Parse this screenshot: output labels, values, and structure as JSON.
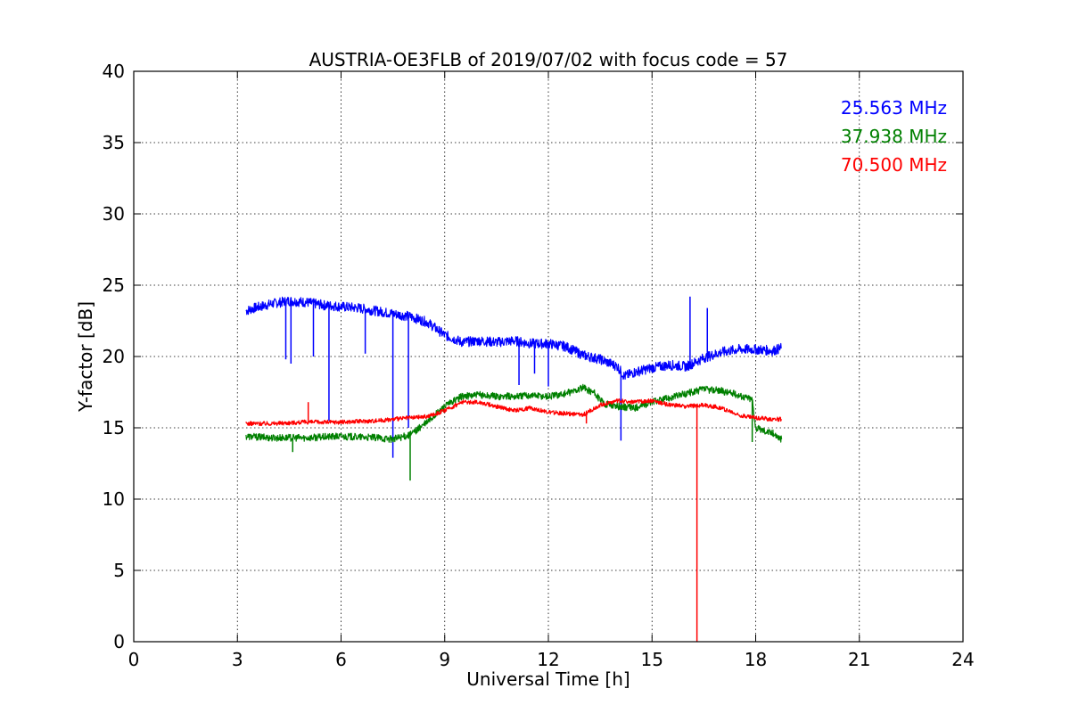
{
  "chart_data": {
    "type": "line",
    "title": "AUSTRIA-OE3FLB of 2019/07/02 with focus code = 57",
    "xlabel": "Universal Time [h]",
    "ylabel": "Y-factor [dB]",
    "xlim": [
      0,
      24
    ],
    "ylim": [
      0,
      40
    ],
    "xticks": [
      0,
      3,
      6,
      9,
      12,
      15,
      18,
      21,
      24
    ],
    "yticks": [
      0,
      5,
      10,
      15,
      20,
      25,
      30,
      35,
      40
    ],
    "grid": true,
    "legend_position": "top-right",
    "series": [
      {
        "name": "25.563 MHz",
        "color": "#0000ff",
        "x": [
          3.25,
          3.5,
          4.0,
          4.5,
          5.0,
          5.5,
          6.0,
          6.5,
          7.0,
          7.5,
          8.0,
          8.5,
          9.0,
          9.5,
          10.0,
          10.5,
          11.0,
          11.5,
          12.0,
          12.5,
          13.0,
          13.5,
          14.0,
          14.2,
          14.5,
          15.0,
          15.5,
          16.0,
          16.5,
          17.0,
          17.5,
          18.0,
          18.5,
          18.75
        ],
        "y": [
          23.2,
          23.4,
          23.7,
          23.9,
          23.8,
          23.6,
          23.5,
          23.4,
          23.2,
          23.0,
          22.8,
          22.4,
          21.5,
          21.0,
          21.1,
          21.0,
          21.1,
          20.9,
          20.9,
          20.7,
          20.1,
          19.8,
          19.3,
          18.6,
          18.9,
          19.2,
          19.4,
          19.3,
          19.9,
          20.3,
          20.5,
          20.5,
          20.4,
          20.6
        ]
      },
      {
        "name": "37.938 MHz",
        "color": "#008000",
        "x": [
          3.25,
          4.0,
          5.0,
          6.0,
          7.0,
          7.5,
          8.0,
          8.5,
          9.0,
          9.5,
          10.0,
          10.5,
          11.0,
          11.5,
          12.0,
          12.5,
          13.0,
          13.3,
          13.6,
          14.0,
          14.5,
          15.0,
          15.5,
          16.0,
          16.5,
          17.0,
          17.5,
          17.9,
          18.0,
          18.5,
          18.75
        ],
        "y": [
          14.4,
          14.3,
          14.3,
          14.4,
          14.3,
          14.2,
          14.5,
          15.4,
          16.5,
          17.2,
          17.3,
          17.2,
          17.2,
          17.3,
          17.2,
          17.4,
          17.8,
          17.5,
          16.7,
          16.5,
          16.4,
          16.8,
          17.1,
          17.4,
          17.7,
          17.6,
          17.3,
          17.0,
          15.0,
          14.6,
          14.2
        ]
      },
      {
        "name": "70.500 MHz",
        "color": "#ff0000",
        "x": [
          3.25,
          4.0,
          5.0,
          6.0,
          7.0,
          8.0,
          8.5,
          9.0,
          9.5,
          10.0,
          10.5,
          11.0,
          11.5,
          12.0,
          12.5,
          13.0,
          13.5,
          14.0,
          14.5,
          15.0,
          15.5,
          16.0,
          16.5,
          17.0,
          17.5,
          18.0,
          18.5,
          18.75
        ],
        "y": [
          15.3,
          15.3,
          15.4,
          15.4,
          15.5,
          15.7,
          15.8,
          16.2,
          16.8,
          16.8,
          16.5,
          16.2,
          16.4,
          16.1,
          16.0,
          15.9,
          16.6,
          16.9,
          16.8,
          16.9,
          16.6,
          16.5,
          16.6,
          16.4,
          15.9,
          15.7,
          15.6,
          15.6
        ]
      }
    ],
    "spikes": [
      {
        "series": 0,
        "x": 4.4,
        "y": 19.8
      },
      {
        "series": 0,
        "x": 4.55,
        "y": 19.5
      },
      {
        "series": 0,
        "x": 5.2,
        "y": 20.0
      },
      {
        "series": 0,
        "x": 5.65,
        "y": 15.5
      },
      {
        "series": 0,
        "x": 6.7,
        "y": 20.2
      },
      {
        "series": 0,
        "x": 7.5,
        "y": 12.9
      },
      {
        "series": 0,
        "x": 7.95,
        "y": 15.0
      },
      {
        "series": 0,
        "x": 11.15,
        "y": 18.0
      },
      {
        "series": 0,
        "x": 11.6,
        "y": 18.8
      },
      {
        "series": 0,
        "x": 12.0,
        "y": 17.9
      },
      {
        "series": 0,
        "x": 14.1,
        "y": 14.1
      },
      {
        "series": 0,
        "x": 16.1,
        "y": 24.2
      },
      {
        "series": 0,
        "x": 16.6,
        "y": 23.4
      },
      {
        "series": 1,
        "x": 4.6,
        "y": 13.3
      },
      {
        "series": 1,
        "x": 8.0,
        "y": 11.3
      },
      {
        "series": 1,
        "x": 17.9,
        "y": 14.0
      },
      {
        "series": 2,
        "x": 5.05,
        "y": 16.8
      },
      {
        "series": 2,
        "x": 16.3,
        "y": 0.0
      },
      {
        "series": 2,
        "x": 8.55,
        "y": 15.9
      },
      {
        "series": 2,
        "x": 13.1,
        "y": 15.3
      }
    ]
  }
}
